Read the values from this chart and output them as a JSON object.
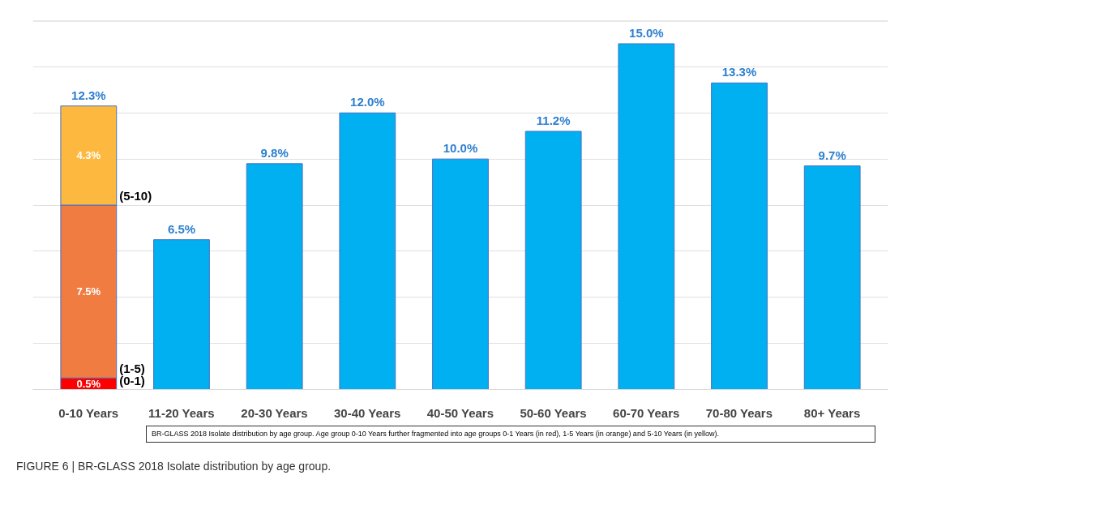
{
  "chart_data": {
    "type": "bar",
    "stacked": true,
    "categories": [
      "0-10 Years",
      "11-20 Years",
      "20-30 Years",
      "30-40 Years",
      "40-50 Years",
      "50-60 Years",
      "60-70 Years",
      "70-80 Years",
      "80+ Years"
    ],
    "series": [
      {
        "name": "(0-1)",
        "color": "#ff0000",
        "values": [
          0.5,
          null,
          null,
          null,
          null,
          null,
          null,
          null,
          null
        ],
        "value_labels": [
          "0.5%",
          null,
          null,
          null,
          null,
          null,
          null,
          null,
          null
        ]
      },
      {
        "name": "(1-5)",
        "color": "#f07c42",
        "values": [
          7.5,
          null,
          null,
          null,
          null,
          null,
          null,
          null,
          null
        ],
        "value_labels": [
          "7.5%",
          null,
          null,
          null,
          null,
          null,
          null,
          null,
          null
        ]
      },
      {
        "name": "(5-10)",
        "color": "#fdb93f",
        "values": [
          4.3,
          null,
          null,
          null,
          null,
          null,
          null,
          null,
          null
        ],
        "value_labels": [
          "4.3%",
          null,
          null,
          null,
          null,
          null,
          null,
          null,
          null
        ]
      },
      {
        "color": "#00b0f0",
        "values": [
          null,
          6.5,
          9.8,
          12.0,
          10.0,
          11.2,
          15.0,
          13.3,
          9.7
        ],
        "value_labels": [
          null,
          "6.5%",
          "9.8%",
          "12.0%",
          "10.0%",
          "11.2%",
          "15.0%",
          "13.3%",
          "9.7%"
        ]
      }
    ],
    "totals": [
      "12.3%",
      null,
      null,
      null,
      null,
      null,
      null,
      null,
      null
    ],
    "ylim": [
      0,
      16
    ],
    "yticks": [
      {
        "value": 0,
        "label": null
      },
      {
        "value": 2,
        "label": null
      },
      {
        "value": 4,
        "label": null
      },
      {
        "value": 6,
        "label": null
      },
      {
        "value": 8,
        "label": null
      },
      {
        "value": 10,
        "label": null
      },
      {
        "value": 12,
        "label": null
      },
      {
        "value": 14,
        "label": null
      },
      {
        "value": 16,
        "label": null
      }
    ],
    "tick_labels": "x",
    "grid": "y",
    "annotations": [
      "BR-GLASS 2018 Isolate distribution by age group. Age group 0-10 Years further fragmented into age groups 0-1 Years (in red), 1-5 Years (in orange) and 5-10 Years (in yellow).",
      "FIGURE 6 | BR-GLASS 2018 Isolate distribution by age group."
    ]
  }
}
